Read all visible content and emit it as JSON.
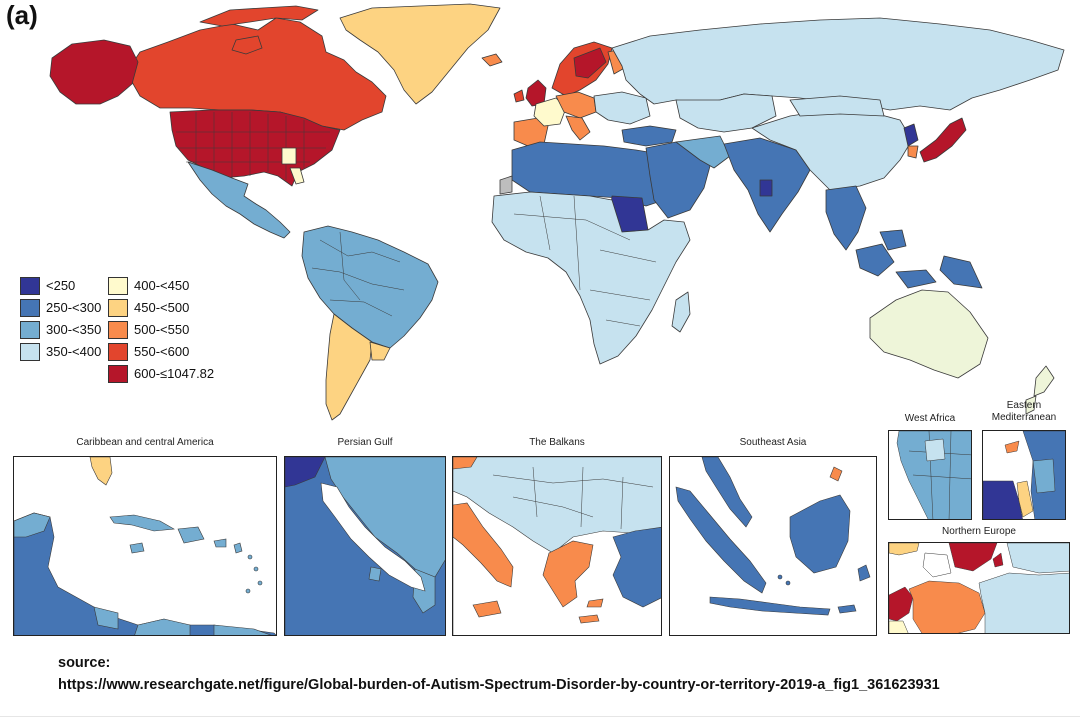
{
  "panel_label": "(a)",
  "colors": {
    "ocean": "#ffffff",
    "border": "#3a3a3a",
    "no_data": "#bdbdbd"
  },
  "legend": {
    "items": [
      {
        "label": "<250",
        "color": "#313695"
      },
      {
        "label": "250-<300",
        "color": "#4575b4"
      },
      {
        "label": "300-<350",
        "color": "#74add1"
      },
      {
        "label": "350-<400",
        "color": "#c6e2ef"
      },
      {
        "label": "400-<450",
        "color": "#fffacd"
      },
      {
        "label": "450-<500",
        "color": "#fdd382"
      },
      {
        "label": "500-<550",
        "color": "#f88b4c"
      },
      {
        "label": "550-<600",
        "color": "#e2452d"
      },
      {
        "label": "600-≤1047.82",
        "color": "#b5162a"
      }
    ]
  },
  "insets": [
    {
      "title": "Caribbean and central America"
    },
    {
      "title": "Persian Gulf"
    },
    {
      "title": "The Balkans"
    },
    {
      "title": "Southeast Asia"
    },
    {
      "title": "West Africa"
    },
    {
      "title": "Eastern Mediterranean"
    },
    {
      "title": "Northern Europe"
    }
  ],
  "source": {
    "label": "source:",
    "url": "https://www.researchgate.net/figure/Global-burden-of-Autism-Spectrum-Disorder-by-country-or-territory-2019-a_fig1_361623931"
  }
}
